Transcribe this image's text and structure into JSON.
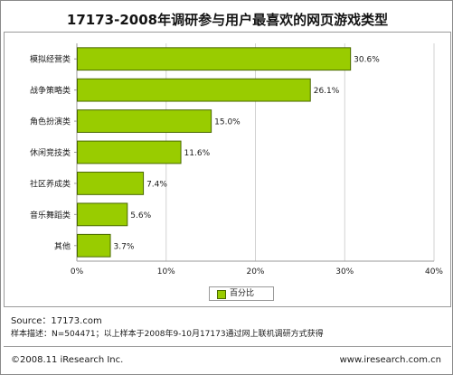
{
  "chart_data": {
    "type": "bar",
    "orientation": "horizontal",
    "title": "17173-2008年调研参与用户最喜欢的网页游戏类型",
    "categories": [
      "模拟经营类",
      "战争策略类",
      "角色扮演类",
      "休闲竞技类",
      "社区养成类",
      "音乐舞蹈类",
      "其他"
    ],
    "values": [
      30.6,
      26.1,
      15.0,
      11.6,
      7.4,
      5.6,
      3.7
    ],
    "value_labels": [
      "30.6%",
      "26.1%",
      "15.0%",
      "11.6%",
      "7.4%",
      "5.6%",
      "3.7%"
    ],
    "series": [
      {
        "name": "百分比",
        "values": [
          30.6,
          26.1,
          15.0,
          11.6,
          7.4,
          5.6,
          3.7
        ]
      }
    ],
    "xlim": [
      0,
      40
    ],
    "x_ticks": [
      0,
      10,
      20,
      30,
      40
    ],
    "x_tick_labels": [
      "0%",
      "10%",
      "20%",
      "30%",
      "40%"
    ],
    "grid": true,
    "legend_placement": "bottom-center",
    "bar_color": "#99cc00",
    "bar_edge_color": "#4a6a00",
    "grid_color": "#d2d2d2"
  },
  "legend": {
    "label": "百分比"
  },
  "notes": {
    "source": "Source：17173.com",
    "sample": "样本描述：N=504471；以上样本于2008年9-10月17173通过网上联机调研方式获得"
  },
  "footer": {
    "copyright": "©2008.11 iResearch Inc.",
    "website": "www.iresearch.com.cn"
  }
}
